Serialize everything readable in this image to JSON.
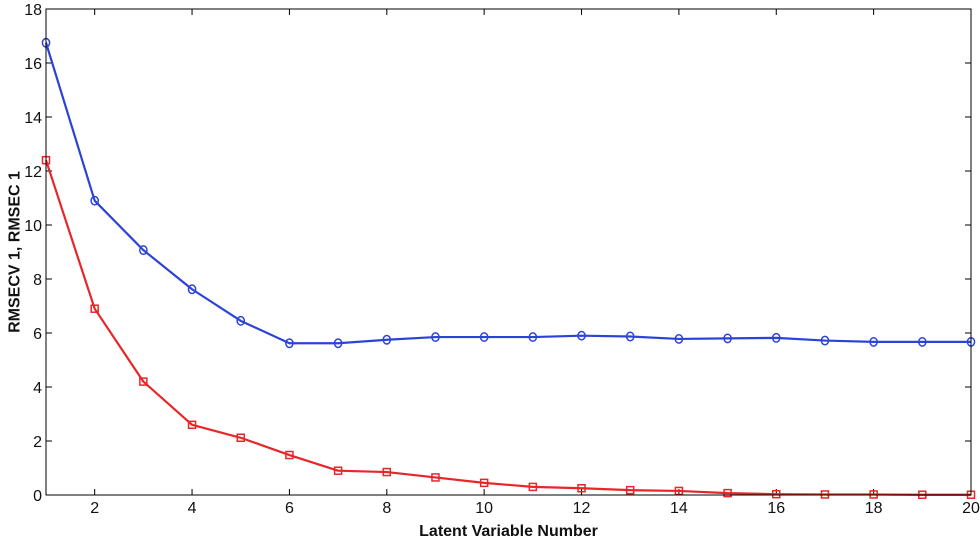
{
  "chart_data": {
    "type": "line",
    "title": "",
    "xlabel": "Latent Variable Number",
    "ylabel": "RMSECV 1, RMSEC 1",
    "xlim": [
      1,
      20
    ],
    "ylim": [
      0,
      18
    ],
    "xticks": [
      2,
      4,
      6,
      8,
      10,
      12,
      14,
      16,
      18,
      20
    ],
    "yticks": [
      0,
      2,
      4,
      6,
      8,
      10,
      12,
      14,
      16,
      18
    ],
    "grid": false,
    "legend": "none",
    "x": [
      1,
      2,
      3,
      4,
      5,
      6,
      7,
      8,
      9,
      10,
      11,
      12,
      13,
      14,
      15,
      16,
      17,
      18,
      19,
      20
    ],
    "series": [
      {
        "color": "#2d43d8",
        "marker": "circle",
        "values": [
          16.75,
          10.9,
          9.07,
          7.62,
          6.45,
          5.62,
          5.62,
          5.75,
          5.85,
          5.85,
          5.85,
          5.9,
          5.87,
          5.78,
          5.8,
          5.82,
          5.72,
          5.67,
          5.67,
          5.67
        ]
      },
      {
        "color": "#e8262a",
        "marker": "square",
        "values": [
          12.4,
          6.9,
          4.2,
          2.6,
          2.12,
          1.48,
          0.9,
          0.85,
          0.65,
          0.45,
          0.3,
          0.25,
          0.18,
          0.15,
          0.07,
          0.03,
          0.02,
          0.02,
          0.01,
          0.01
        ]
      }
    ]
  }
}
